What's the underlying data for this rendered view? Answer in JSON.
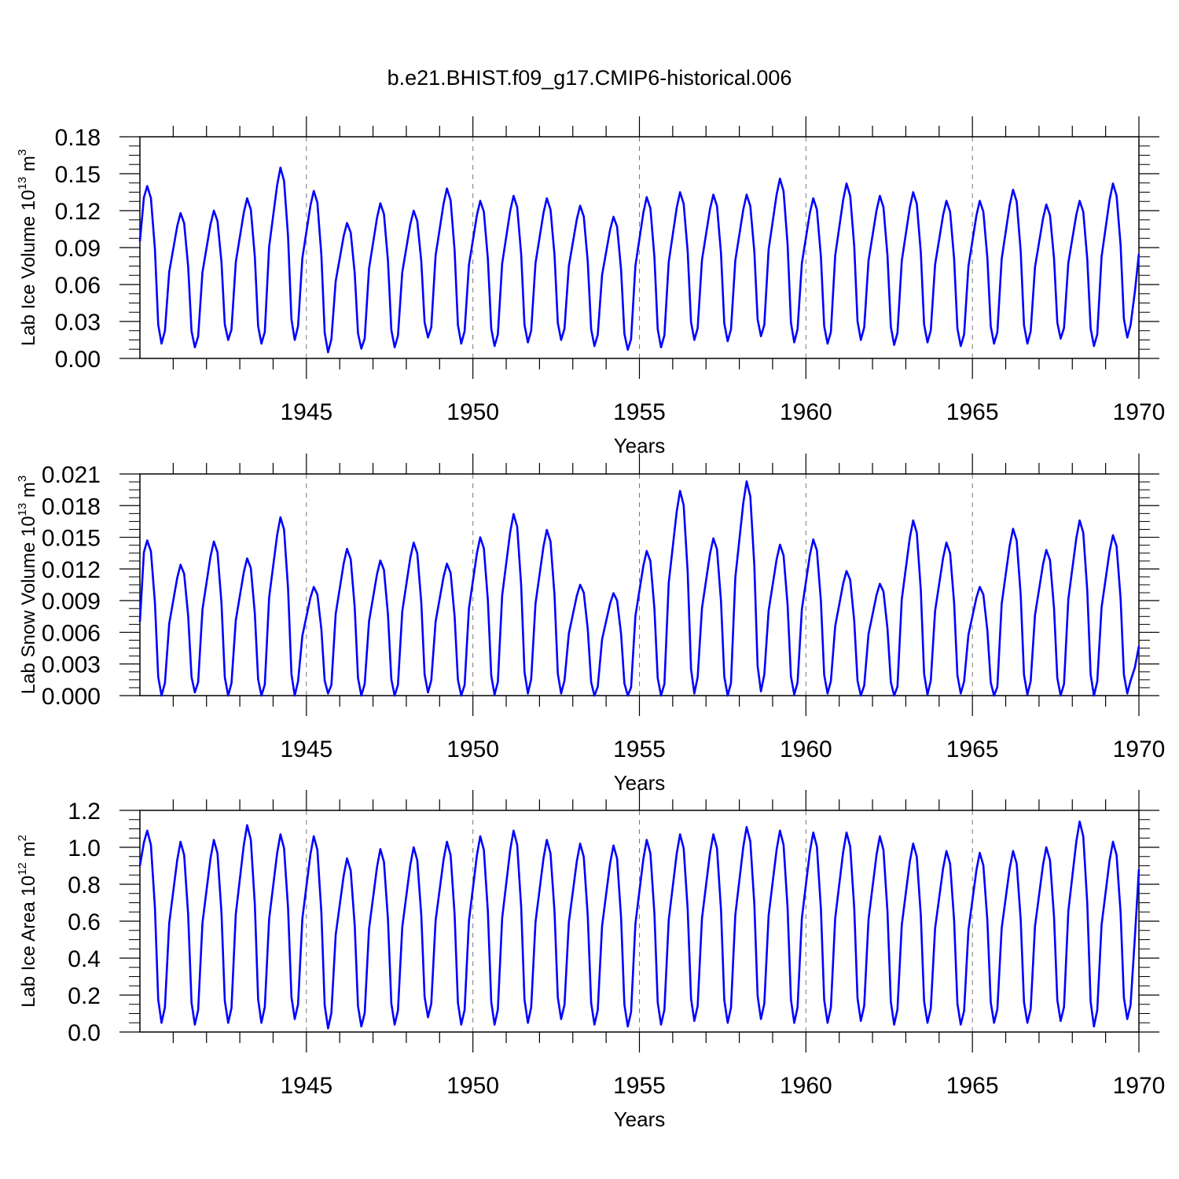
{
  "title": "b.e21.BHIST.f09_g17.CMIP6-historical.006",
  "line_color": "#0000ff",
  "chart_data": [
    {
      "type": "line",
      "title": "b.e21.BHIST.f09_g17.CMIP6-historical.006",
      "ylabel_main": "Lab Ice Volume 10",
      "ylabel_exp": "13",
      "ylabel_unit": " m",
      "ylabel_unit_exp": "3",
      "xlabel": "Years",
      "xlim": [
        1940.0,
        1970.0
      ],
      "ylim": [
        0.0,
        0.18
      ],
      "yticks": [
        0.0,
        0.03,
        0.06,
        0.09,
        0.12,
        0.15,
        0.18
      ],
      "ytick_labels": [
        "0.00",
        "0.03",
        "0.06",
        "0.09",
        "0.12",
        "0.15",
        "0.18"
      ],
      "xticks": [
        1945,
        1950,
        1955,
        1960,
        1965,
        1970
      ],
      "xtick_labels": [
        "1945",
        "1950",
        "1955",
        "1960",
        "1965",
        "1970"
      ],
      "grid": "dashed vertical at x ticks",
      "series": [
        {
          "name": "Lab Ice Volume",
          "annual_peaks": [
            0.14,
            0.118,
            0.12,
            0.13,
            0.155,
            0.136,
            0.11,
            0.126,
            0.12,
            0.138,
            0.128,
            0.132,
            0.13,
            0.124,
            0.115,
            0.131,
            0.135,
            0.133,
            0.133,
            0.146,
            0.13,
            0.142,
            0.132,
            0.135,
            0.128,
            0.128,
            0.137,
            0.125,
            0.128,
            0.142
          ],
          "annual_minima": [
            0.012,
            0.009,
            0.015,
            0.012,
            0.015,
            0.005,
            0.008,
            0.009,
            0.017,
            0.012,
            0.01,
            0.013,
            0.015,
            0.01,
            0.007,
            0.009,
            0.015,
            0.014,
            0.018,
            0.013,
            0.012,
            0.015,
            0.011,
            0.013,
            0.01,
            0.012,
            0.012,
            0.016,
            0.01,
            0.017
          ],
          "start_value": 0.095,
          "end_value": 0.085
        }
      ]
    },
    {
      "type": "line",
      "ylabel_main": "Lab Snow Volume 10",
      "ylabel_exp": "13",
      "ylabel_unit": " m",
      "ylabel_unit_exp": "3",
      "xlabel": "Years",
      "xlim": [
        1940.0,
        1970.0
      ],
      "ylim": [
        0.0,
        0.021
      ],
      "yticks": [
        0.0,
        0.003,
        0.006,
        0.009,
        0.012,
        0.015,
        0.018,
        0.021
      ],
      "ytick_labels": [
        "0.000",
        "0.003",
        "0.006",
        "0.009",
        "0.012",
        "0.015",
        "0.018",
        "0.021"
      ],
      "xticks": [
        1945,
        1950,
        1955,
        1960,
        1965,
        1970
      ],
      "xtick_labels": [
        "1945",
        "1950",
        "1955",
        "1960",
        "1965",
        "1970"
      ],
      "grid": "dashed vertical at x ticks",
      "series": [
        {
          "name": "Lab Snow Volume",
          "annual_peaks": [
            0.0147,
            0.0124,
            0.0146,
            0.013,
            0.0169,
            0.0103,
            0.0139,
            0.0128,
            0.0145,
            0.0125,
            0.015,
            0.0172,
            0.0157,
            0.0105,
            0.0097,
            0.0137,
            0.0194,
            0.0149,
            0.0203,
            0.0143,
            0.0148,
            0.0118,
            0.0106,
            0.0166,
            0.0145,
            0.0103,
            0.0158,
            0.0138,
            0.0166,
            0.0152
          ],
          "annual_minima": [
            0.0,
            0.0003,
            0.0,
            0.0,
            0.0,
            0.0002,
            0.0,
            0.0,
            0.0003,
            0.0,
            0.0001,
            0.0002,
            0.0002,
            0.0,
            0.0,
            0.0,
            0.0002,
            0.0,
            0.0004,
            0.0001,
            0.0002,
            0.0,
            0.0,
            0.0001,
            0.0002,
            0.0,
            0.0001,
            0.0,
            0.0,
            0.0002
          ],
          "start_value": 0.007,
          "end_value": 0.0047
        }
      ]
    },
    {
      "type": "line",
      "ylabel_main": "Lab Ice Area 10",
      "ylabel_exp": "12",
      "ylabel_unit": " m",
      "ylabel_unit_exp": "2",
      "xlabel": "Years",
      "xlim": [
        1940.0,
        1970.0
      ],
      "ylim": [
        0.0,
        1.2
      ],
      "yticks": [
        0.0,
        0.2,
        0.4,
        0.6,
        0.8,
        1.0,
        1.2
      ],
      "ytick_labels": [
        "0.0",
        "0.2",
        "0.4",
        "0.6",
        "0.8",
        "1.0",
        "1.2"
      ],
      "xticks": [
        1945,
        1950,
        1955,
        1960,
        1965,
        1970
      ],
      "xtick_labels": [
        "1945",
        "1950",
        "1955",
        "1960",
        "1965",
        "1970"
      ],
      "grid": "dashed vertical at x ticks",
      "series": [
        {
          "name": "Lab Ice Area",
          "annual_peaks": [
            1.09,
            1.03,
            1.04,
            1.12,
            1.07,
            1.06,
            0.94,
            0.99,
            1.0,
            1.03,
            1.06,
            1.09,
            1.04,
            1.02,
            1.01,
            1.04,
            1.07,
            1.07,
            1.11,
            1.09,
            1.08,
            1.08,
            1.06,
            1.02,
            0.98,
            0.97,
            0.98,
            1.0,
            1.14,
            1.03
          ],
          "annual_minima": [
            0.05,
            0.04,
            0.05,
            0.05,
            0.07,
            0.02,
            0.03,
            0.04,
            0.08,
            0.04,
            0.04,
            0.05,
            0.07,
            0.04,
            0.03,
            0.04,
            0.06,
            0.05,
            0.07,
            0.05,
            0.05,
            0.06,
            0.04,
            0.05,
            0.04,
            0.05,
            0.05,
            0.06,
            0.03,
            0.07
          ],
          "start_value": 0.9,
          "end_value": 0.88
        }
      ]
    }
  ]
}
